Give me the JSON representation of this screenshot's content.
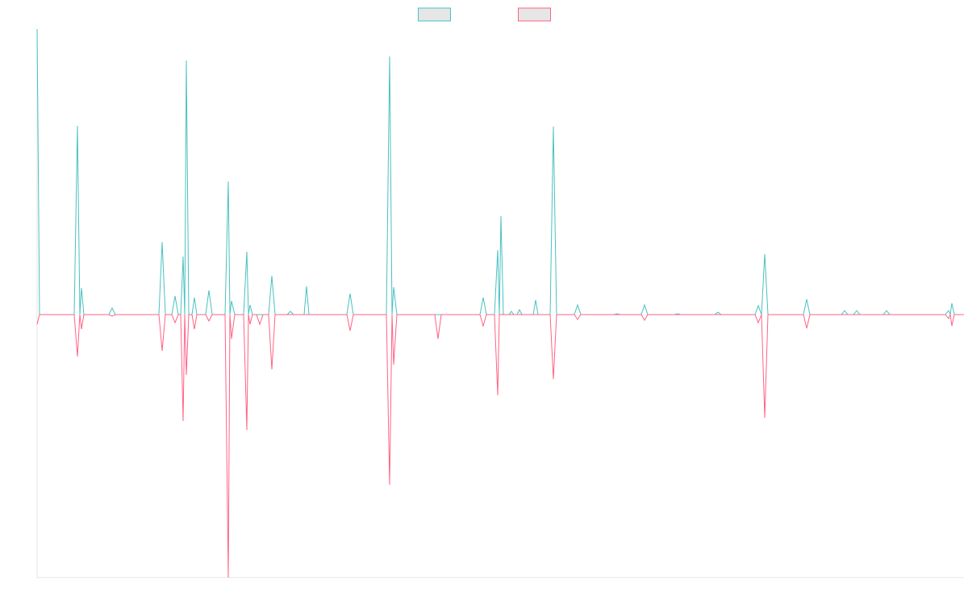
{
  "chart_data": {
    "type": "line",
    "legend": "top",
    "xlim": [
      0,
      1149
    ],
    "ylim": [
      -326,
      354
    ],
    "x": [
      0,
      3,
      46,
      50,
      53,
      55,
      58,
      89,
      93,
      97,
      151,
      155,
      159,
      167,
      171,
      175,
      178,
      181,
      183,
      185,
      188,
      192,
      195,
      198,
      209,
      213,
      217,
      233,
      237,
      239,
      241,
      245,
      256,
      260,
      262,
      264,
      267,
      272,
      276,
      280,
      287,
      291,
      295,
      310,
      314,
      318,
      331,
      334,
      337,
      384,
      388,
      392,
      433,
      437,
      440,
      442,
      446,
      493,
      497,
      501,
      549,
      553,
      557,
      567,
      571,
      573,
      575,
      578,
      585,
      588,
      591,
      595,
      598,
      601,
      615,
      618,
      621,
      636,
      640,
      644,
      666,
      670,
      674,
      715,
      719,
      723,
      749,
      753,
      757,
      790,
      794,
      798,
      840,
      844,
      848,
      890,
      894,
      898,
      902,
      906,
      950,
      954,
      958,
      997,
      1001,
      1005,
      1012,
      1016,
      1020,
      1049,
      1053,
      1057,
      1126,
      1130,
      1132,
      1134,
      1137,
      1149
    ],
    "series": [
      {
        "color": "#4bc0c0",
        "values": [
          354,
          0,
          0,
          234,
          0,
          33,
          0,
          0,
          8,
          0,
          0,
          90,
          0,
          0,
          23,
          0,
          0,
          72,
          0,
          315,
          0,
          0,
          21,
          0,
          0,
          30,
          0,
          0,
          165,
          0,
          17,
          0,
          0,
          78,
          0,
          12,
          0,
          0,
          0,
          0,
          0,
          48,
          0,
          0,
          4,
          0,
          0,
          35,
          0,
          0,
          26,
          0,
          0,
          320,
          0,
          34,
          0,
          0,
          0,
          0,
          0,
          21,
          0,
          0,
          80,
          0,
          122,
          0,
          0,
          4,
          0,
          0,
          6,
          0,
          0,
          18,
          0,
          0,
          233,
          0,
          0,
          12,
          0,
          0,
          1,
          0,
          0,
          12,
          0,
          0,
          1,
          0,
          0,
          3,
          0,
          0,
          11,
          0,
          75,
          0,
          0,
          19,
          0,
          0,
          5,
          0,
          0,
          5,
          0,
          0,
          5,
          0,
          0,
          5,
          0,
          14,
          0,
          0
        ]
      },
      {
        "color": "#ff6384",
        "values": [
          -12,
          0,
          0,
          -52,
          0,
          -18,
          0,
          0,
          -2,
          0,
          0,
          -45,
          0,
          0,
          -10,
          0,
          0,
          -132,
          0,
          -75,
          0,
          0,
          -18,
          0,
          0,
          -8,
          0,
          0,
          -326,
          0,
          -30,
          0,
          0,
          -143,
          0,
          -12,
          0,
          0,
          -12,
          0,
          0,
          -68,
          0,
          0,
          0,
          0,
          0,
          0,
          0,
          0,
          -20,
          0,
          0,
          -211,
          0,
          -62,
          0,
          0,
          -30,
          0,
          0,
          -14,
          0,
          0,
          -100,
          0,
          0,
          0,
          0,
          0,
          0,
          0,
          0,
          0,
          0,
          0,
          0,
          0,
          -80,
          0,
          0,
          -6,
          0,
          0,
          0,
          0,
          0,
          -7,
          0,
          0,
          0,
          0,
          0,
          0,
          0,
          0,
          -10,
          0,
          -128,
          0,
          0,
          -17,
          0,
          0,
          0,
          0,
          0,
          0,
          0,
          0,
          0,
          0,
          0,
          -5,
          0,
          -14,
          0,
          0
        ]
      }
    ]
  }
}
